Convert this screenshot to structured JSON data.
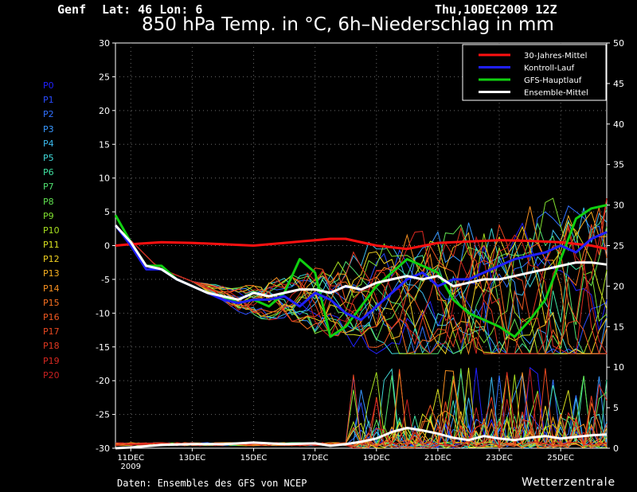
{
  "header": {
    "location": "Genf",
    "coords": "Lat: 46 Lon: 6",
    "run": "Thu,10DEC2009 12Z",
    "title": "850 hPa Temp. in °C, 6h–Niederschlag in mm"
  },
  "footer": {
    "source": "Daten: Ensembles des GFS von NCEP",
    "brand": "Wetterzentrale"
  },
  "members": [
    {
      "label": "P0",
      "color": "#2020ff"
    },
    {
      "label": "P1",
      "color": "#2a4cff"
    },
    {
      "label": "P2",
      "color": "#3070ff"
    },
    {
      "label": "P3",
      "color": "#3898ff"
    },
    {
      "label": "P4",
      "color": "#3cbcf0"
    },
    {
      "label": "P5",
      "color": "#40d8d8"
    },
    {
      "label": "P6",
      "color": "#40e0a0"
    },
    {
      "label": "P7",
      "color": "#50e070"
    },
    {
      "label": "P8",
      "color": "#60e050"
    },
    {
      "label": "P9",
      "color": "#80e030"
    },
    {
      "label": "P10",
      "color": "#a8e020"
    },
    {
      "label": "P11",
      "color": "#d8e020"
    },
    {
      "label": "P12",
      "color": "#f0d020"
    },
    {
      "label": "P13",
      "color": "#f8b020"
    },
    {
      "label": "P14",
      "color": "#f89020"
    },
    {
      "label": "P15",
      "color": "#f87020"
    },
    {
      "label": "P16",
      "color": "#f05820"
    },
    {
      "label": "P17",
      "color": "#e84820"
    },
    {
      "label": "P18",
      "color": "#e03820"
    },
    {
      "label": "P19",
      "color": "#d82820"
    },
    {
      "label": "P20",
      "color": "#c82020"
    }
  ],
  "chart_data": {
    "type": "line",
    "title": "850 hPa Temp. in °C, 6h–Niederschlag in mm",
    "x_ticks": [
      "11DEC",
      "13DEC",
      "15DEC",
      "17DEC",
      "19DEC",
      "21DEC",
      "23DEC",
      "25DEC"
    ],
    "x_tick_year": "2009",
    "x_range_days": [
      10.5,
      26.5
    ],
    "y_left": {
      "range": [
        -30,
        30
      ],
      "ticks": [
        30,
        25,
        20,
        15,
        10,
        5,
        0,
        -5,
        -10,
        -15,
        -20,
        -25,
        -30
      ]
    },
    "y_right": {
      "range": [
        0,
        50
      ],
      "ticks": [
        50,
        45,
        40,
        35,
        30,
        25,
        20,
        15,
        10,
        5,
        0
      ]
    },
    "grid": true,
    "legend": {
      "placement": "top-right",
      "entries": [
        {
          "label": "30-Jahres-Mittel",
          "color": "#ff1010"
        },
        {
          "label": "Kontroll-Lauf",
          "color": "#2020ff"
        },
        {
          "label": "GFS-Hauptlauf",
          "color": "#10d010"
        },
        {
          "label": "Ensemble-Mittel",
          "color": "#ffffff"
        }
      ]
    },
    "series": [
      {
        "name": "30-Jahres-Mittel",
        "color": "#ff1010",
        "width": 3,
        "axis": "left",
        "x": [
          10.5,
          11,
          12,
          13,
          14,
          15,
          16,
          17,
          17.5,
          18,
          19,
          20,
          21,
          22,
          23,
          24,
          25,
          26,
          26.5
        ],
        "y": [
          0,
          0.2,
          0.5,
          0.4,
          0.2,
          0,
          0.4,
          0.8,
          1,
          1,
          0,
          -0.5,
          0.4,
          0.6,
          0.8,
          0.7,
          0.5,
          0,
          -0.5
        ]
      },
      {
        "name": "GFS-Hauptlauf",
        "color": "#10d010",
        "width": 3,
        "axis": "left",
        "x": [
          10.5,
          11,
          11.5,
          12,
          12.5,
          13,
          13.5,
          14,
          14.5,
          15,
          15.5,
          16,
          16.5,
          17,
          17.5,
          18,
          18.5,
          19,
          19.5,
          20,
          20.5,
          21,
          21.5,
          22,
          22.5,
          23,
          23.5,
          24,
          24.5,
          25,
          25.5,
          26,
          26.5
        ],
        "y": [
          4.5,
          0.5,
          -3,
          -3,
          -5,
          -6,
          -7,
          -7.5,
          -8.5,
          -8,
          -9,
          -7,
          -2,
          -4,
          -13.5,
          -12,
          -9,
          -6,
          -4,
          -2,
          -3,
          -4,
          -8,
          -10,
          -11,
          -12,
          -13.5,
          -11,
          -8,
          -2,
          4,
          5.5,
          6
        ]
      },
      {
        "name": "Kontroll-Lauf",
        "color": "#2020ff",
        "width": 3,
        "axis": "left",
        "x": [
          10.5,
          11,
          11.5,
          12,
          12.5,
          13,
          13.5,
          14,
          14.5,
          15,
          15.5,
          16,
          16.5,
          17,
          17.5,
          18,
          18.5,
          19,
          19.5,
          20,
          20.5,
          21,
          21.5,
          22,
          22.5,
          23,
          23.5,
          24,
          24.5,
          25,
          25.5,
          26,
          26.5
        ],
        "y": [
          3,
          0,
          -3.5,
          -3.5,
          -5,
          -6,
          -7,
          -8,
          -8.5,
          -8,
          -8,
          -7.5,
          -9,
          -7,
          -8,
          -10,
          -11,
          -9,
          -7,
          -5,
          -4,
          -6,
          -5,
          -5,
          -4,
          -3,
          -2,
          -1.5,
          -1,
          0,
          -1,
          1,
          2
        ]
      },
      {
        "name": "Ensemble-Mittel",
        "color": "#ffffff",
        "width": 3,
        "axis": "left",
        "x": [
          10.5,
          11,
          11.5,
          12,
          12.5,
          13,
          13.5,
          14,
          14.5,
          15,
          15.5,
          16,
          16.5,
          17,
          17.5,
          18,
          18.5,
          19,
          19.5,
          20,
          20.5,
          21,
          21.5,
          22,
          22.5,
          23,
          23.5,
          24,
          24.5,
          25,
          25.5,
          26,
          26.5
        ],
        "y": [
          3,
          0.5,
          -3,
          -3.5,
          -5,
          -6,
          -7,
          -7.5,
          -8,
          -7,
          -7.5,
          -7,
          -6.5,
          -6.5,
          -7,
          -6,
          -6.5,
          -5.5,
          -5,
          -4.5,
          -5,
          -4.5,
          -6,
          -5.5,
          -5,
          -5,
          -4.5,
          -4,
          -3.5,
          -3,
          -2.5,
          -2.5,
          -2.8
        ]
      },
      {
        "name": "Ensemble-Mittel Niederschlag",
        "color": "#ffffff",
        "width": 3,
        "axis": "right",
        "x": [
          10.5,
          11,
          12,
          13,
          14,
          15,
          16,
          17,
          17.5,
          18,
          18.5,
          19,
          19.5,
          20,
          20.5,
          21,
          21.5,
          22,
          22.5,
          23,
          23.5,
          24,
          24.5,
          25,
          25.5,
          26,
          26.5
        ],
        "y": [
          0,
          0.1,
          0.4,
          0.5,
          0.5,
          0.7,
          0.5,
          0.6,
          0.3,
          0.5,
          0.8,
          1.2,
          2,
          2.5,
          2.2,
          1.8,
          1.3,
          1,
          1.5,
          1.2,
          1,
          1.3,
          1.5,
          1.2,
          1.4,
          1.6,
          1.7
        ]
      }
    ]
  }
}
